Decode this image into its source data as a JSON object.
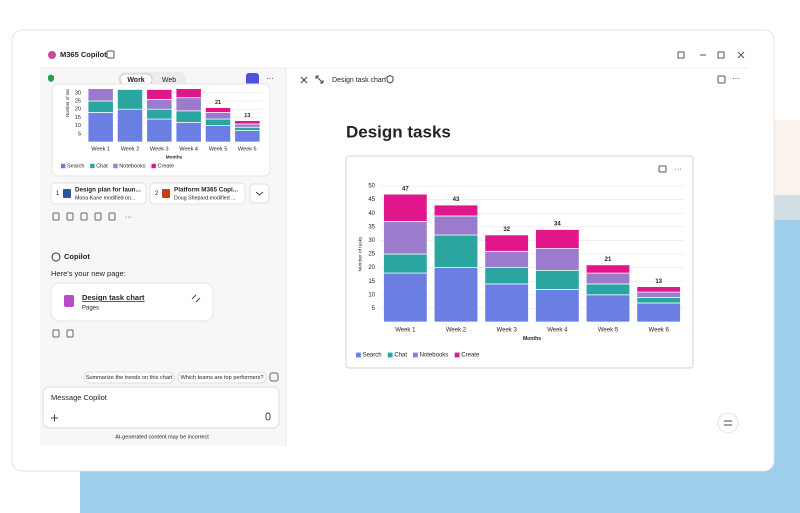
{
  "app": {
    "title": "M365 Copilot",
    "tabs": [
      "Work",
      "Web"
    ]
  },
  "left": {
    "documents": [
      {
        "index": "1",
        "title": "Design plan for laun...",
        "subtitle": "Mona Kane modified on..."
      },
      {
        "index": "2",
        "title": "Platform M365 Copi...",
        "subtitle": "Doug Shepard modified ..."
      }
    ],
    "sender": "Copilot",
    "message": "Here's your new page:",
    "page_card": {
      "title": "Design task chart",
      "subtitle": "Pages"
    },
    "suggestions": [
      "Summarize the trends on this chart",
      "Which teams are top performers?"
    ],
    "input_placeholder": "Message Copilot",
    "disclaimer": "AI-generated content may be incorrect"
  },
  "right": {
    "header": "Design task chart"
  },
  "chart_data": {
    "type": "stacked-bar",
    "title": "Design tasks",
    "categories": [
      "Week 1",
      "Week 2",
      "Week 3",
      "Week 4",
      "Week 5",
      "Week 6"
    ],
    "series": [
      {
        "name": "Search",
        "color": "#6b7fe3",
        "values": [
          18,
          20,
          14,
          12,
          10,
          7
        ]
      },
      {
        "name": "Chat",
        "color": "#2aa5a0",
        "values": [
          7,
          12,
          6,
          7,
          4,
          2
        ]
      },
      {
        "name": "Notebooks",
        "color": "#9b7ccc",
        "values": [
          12,
          7,
          6,
          8,
          4,
          2
        ]
      },
      {
        "name": "Create",
        "color": "#e0168a",
        "values": [
          10,
          4,
          6,
          7,
          3,
          2
        ]
      }
    ],
    "totals": [
      47,
      43,
      32,
      34,
      21,
      13
    ],
    "ylim": [
      0,
      50
    ],
    "yticks": [
      5,
      10,
      15,
      20,
      25,
      30,
      35,
      40,
      45,
      50
    ],
    "y_label": "Number of tasks",
    "x_label": "Months",
    "grid": true
  }
}
